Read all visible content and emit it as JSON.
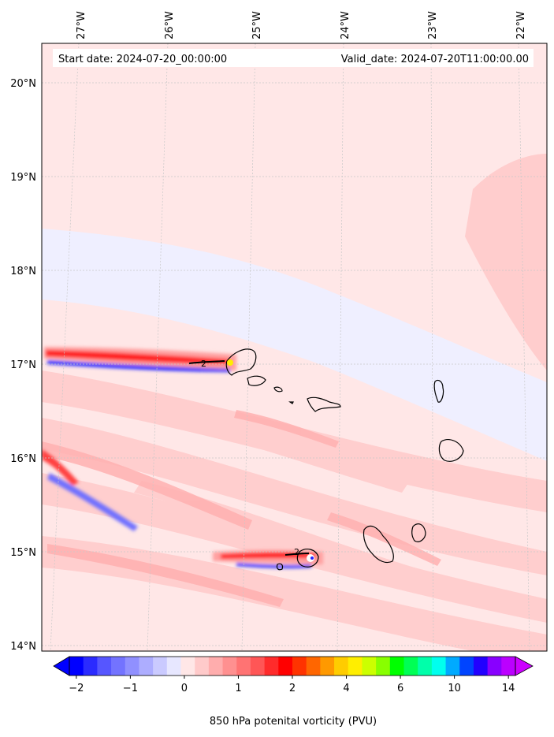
{
  "header": {
    "start_date": "Start date: 2024-07-20_00:00:00",
    "valid_date": "Valid_date: 2024-07-20T11:00:00.00"
  },
  "longitude_labels": [
    "27°W",
    "26°W",
    "25°W",
    "24°W",
    "23°W",
    "22°W"
  ],
  "latitude_labels": [
    "20°N",
    "19°N",
    "18°N",
    "17°N",
    "16°N",
    "15°N",
    "14°N"
  ],
  "contour_labels": [
    "2",
    "2"
  ],
  "colorbar": {
    "title": "850 hPa potenital vorticity (PVU)",
    "tick_labels": [
      "−2",
      "−1",
      "0",
      "1",
      "2",
      "4",
      "6",
      "10",
      "14"
    ],
    "colors": [
      "#0000ff",
      "#2b2bff",
      "#5656ff",
      "#7373ff",
      "#9090ff",
      "#adadff",
      "#cacaff",
      "#e7e7ff",
      "#ffe7e7",
      "#ffcaca",
      "#ffadad",
      "#ff9090",
      "#ff7373",
      "#ff5656",
      "#ff2b2b",
      "#ff0000",
      "#ff3300",
      "#ff6600",
      "#ff9900",
      "#ffcc00",
      "#ffee00",
      "#ccff00",
      "#88ff00",
      "#00ff00",
      "#00ff55",
      "#00ffaa",
      "#00ffee",
      "#00aaff",
      "#0044ff",
      "#2200ff",
      "#8800ff",
      "#bb00ff"
    ],
    "under_color": "#0000ff",
    "over_color": "#cc00ff"
  },
  "colors": {
    "background_field": "#ffe7e7",
    "light_blue_band": "#efefff",
    "pink_band": "#ffcdcd",
    "strong_red": "#ff1a1a",
    "strong_blue": "#2222ff"
  }
}
